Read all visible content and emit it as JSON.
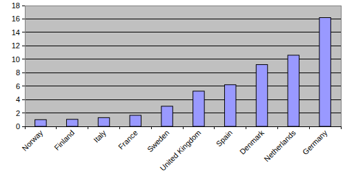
{
  "chart_data": {
    "type": "bar",
    "categories": [
      "Norway",
      "Finland",
      "Italy",
      "France",
      "Sweden",
      "United Kingdom",
      "Spain",
      "Denmark",
      "Netherlands",
      "Germany"
    ],
    "values": [
      1.0,
      1.05,
      1.3,
      1.65,
      3.0,
      5.25,
      6.2,
      9.2,
      10.6,
      16.2
    ],
    "color": "#9999ff",
    "ylim": [
      0,
      18
    ],
    "yticks": [
      0,
      2,
      4,
      6,
      8,
      10,
      12,
      14,
      16,
      18
    ],
    "grid": true
  }
}
